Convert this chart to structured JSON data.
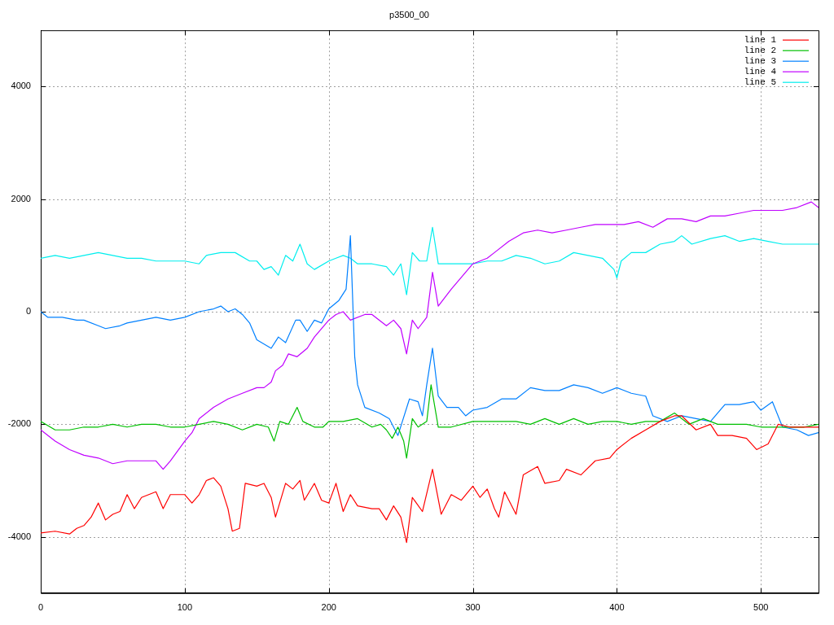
{
  "chart_data": {
    "type": "line",
    "title": "p3500_00",
    "xlim": [
      0,
      540
    ],
    "ylim": [
      -5000,
      5000
    ],
    "xticks": [
      0,
      100,
      200,
      300,
      400,
      500
    ],
    "yticks": [
      -4000,
      -2000,
      0,
      2000,
      4000
    ],
    "grid": true,
    "legend": "top right",
    "marker": "none",
    "line_style": "solid",
    "series": [
      {
        "name": "line 1",
        "color": "#ff0000",
        "x": [
          0,
          10,
          20,
          25,
          30,
          35,
          40,
          45,
          50,
          55,
          60,
          65,
          70,
          80,
          85,
          90,
          100,
          105,
          110,
          115,
          120,
          125,
          130,
          133,
          138,
          142,
          150,
          155,
          160,
          163,
          170,
          175,
          180,
          183,
          190,
          195,
          200,
          205,
          210,
          215,
          220,
          230,
          235,
          240,
          245,
          250,
          254,
          258,
          265,
          272,
          278,
          285,
          292,
          300,
          305,
          310,
          315,
          318,
          322,
          330,
          335,
          345,
          350,
          360,
          365,
          375,
          385,
          395,
          400,
          410,
          420,
          430,
          440,
          445,
          455,
          465,
          470,
          480,
          490,
          497,
          505,
          512,
          520,
          530,
          540
        ],
        "values": [
          -3930,
          -3900,
          -3950,
          -3850,
          -3800,
          -3650,
          -3400,
          -3700,
          -3600,
          -3550,
          -3250,
          -3500,
          -3300,
          -3200,
          -3500,
          -3250,
          -3250,
          -3400,
          -3250,
          -3000,
          -2950,
          -3100,
          -3500,
          -3900,
          -3850,
          -3050,
          -3100,
          -3050,
          -3300,
          -3650,
          -3050,
          -3150,
          -3000,
          -3350,
          -3050,
          -3350,
          -3400,
          -3050,
          -3550,
          -3250,
          -3450,
          -3500,
          -3500,
          -3700,
          -3450,
          -3650,
          -4100,
          -3300,
          -3550,
          -2800,
          -3600,
          -3250,
          -3350,
          -3100,
          -3300,
          -3150,
          -3500,
          -3650,
          -3200,
          -3600,
          -2900,
          -2750,
          -3050,
          -3000,
          -2800,
          -2900,
          -2650,
          -2600,
          -2450,
          -2250,
          -2100,
          -1950,
          -1850,
          -1850,
          -2100,
          -2000,
          -2200,
          -2200,
          -2250,
          -2450,
          -2350,
          -2000,
          -2050,
          -2050,
          -2050
        ]
      },
      {
        "name": "line 2",
        "color": "#00c000",
        "x": [
          0,
          10,
          20,
          30,
          40,
          50,
          60,
          70,
          80,
          90,
          100,
          110,
          120,
          130,
          140,
          150,
          158,
          162,
          166,
          172,
          178,
          182,
          190,
          196,
          200,
          210,
          220,
          230,
          236,
          240,
          244,
          248,
          252,
          254,
          258,
          262,
          268,
          271,
          276,
          285,
          300,
          310,
          320,
          330,
          340,
          350,
          360,
          370,
          380,
          390,
          400,
          410,
          420,
          430,
          440,
          450,
          460,
          470,
          480,
          490,
          500,
          510,
          520,
          530,
          540
        ],
        "values": [
          -1950,
          -2100,
          -2100,
          -2050,
          -2050,
          -2000,
          -2050,
          -2000,
          -2000,
          -2050,
          -2050,
          -2000,
          -1950,
          -2000,
          -2100,
          -2000,
          -2050,
          -2300,
          -1950,
          -2000,
          -1700,
          -1950,
          -2050,
          -2050,
          -1950,
          -1950,
          -1900,
          -2050,
          -2000,
          -2100,
          -2250,
          -2050,
          -2300,
          -2600,
          -1900,
          -2050,
          -1950,
          -1300,
          -2050,
          -2050,
          -1950,
          -1950,
          -1950,
          -1950,
          -2000,
          -1900,
          -2000,
          -1900,
          -2000,
          -1950,
          -1950,
          -2000,
          -1950,
          -1950,
          -1800,
          -2000,
          -1900,
          -2000,
          -2000,
          -2000,
          -2050,
          -2050,
          -2050,
          -2050,
          -2000
        ]
      },
      {
        "name": "line 3",
        "color": "#0080ff",
        "x": [
          0,
          5,
          15,
          25,
          30,
          40,
          45,
          55,
          60,
          70,
          80,
          90,
          100,
          110,
          120,
          125,
          130,
          135,
          140,
          145,
          150,
          160,
          165,
          170,
          177,
          180,
          185,
          190,
          195,
          200,
          207,
          212,
          215,
          218,
          220,
          225,
          235,
          242,
          248,
          256,
          262,
          265,
          268,
          272,
          276,
          282,
          290,
          295,
          300,
          310,
          320,
          330,
          340,
          350,
          360,
          370,
          380,
          390,
          400,
          410,
          420,
          425,
          435,
          445,
          455,
          465,
          475,
          485,
          495,
          500,
          508,
          515,
          525,
          533,
          540
        ],
        "values": [
          0,
          -100,
          -100,
          -150,
          -150,
          -250,
          -300,
          -250,
          -200,
          -150,
          -100,
          -150,
          -100,
          0,
          50,
          100,
          0,
          50,
          -50,
          -200,
          -500,
          -650,
          -450,
          -550,
          -150,
          -150,
          -350,
          -150,
          -200,
          50,
          200,
          400,
          1350,
          -800,
          -1300,
          -1700,
          -1800,
          -1900,
          -2200,
          -1550,
          -1600,
          -1850,
          -1300,
          -650,
          -1500,
          -1700,
          -1700,
          -1850,
          -1750,
          -1700,
          -1550,
          -1550,
          -1350,
          -1400,
          -1400,
          -1300,
          -1350,
          -1450,
          -1350,
          -1450,
          -1500,
          -1850,
          -1950,
          -1850,
          -1900,
          -1950,
          -1650,
          -1650,
          -1600,
          -1750,
          -1600,
          -2050,
          -2100,
          -2200,
          -2150
        ]
      },
      {
        "name": "line 4",
        "color": "#c000ff",
        "x": [
          0,
          10,
          20,
          30,
          40,
          50,
          60,
          70,
          80,
          85,
          90,
          100,
          105,
          110,
          120,
          130,
          140,
          150,
          155,
          160,
          163,
          168,
          172,
          178,
          185,
          190,
          200,
          205,
          210,
          215,
          225,
          230,
          240,
          245,
          250,
          254,
          258,
          262,
          268,
          272,
          276,
          285,
          300,
          310,
          315,
          325,
          335,
          345,
          355,
          365,
          375,
          385,
          395,
          405,
          415,
          425,
          435,
          445,
          455,
          465,
          475,
          485,
          495,
          505,
          515,
          525,
          535,
          540
        ],
        "values": [
          -2100,
          -2300,
          -2450,
          -2550,
          -2600,
          -2700,
          -2650,
          -2650,
          -2650,
          -2800,
          -2650,
          -2300,
          -2150,
          -1900,
          -1700,
          -1550,
          -1450,
          -1350,
          -1350,
          -1250,
          -1050,
          -950,
          -750,
          -800,
          -650,
          -450,
          -150,
          -50,
          0,
          -150,
          -50,
          -50,
          -250,
          -150,
          -300,
          -750,
          -150,
          -300,
          -100,
          700,
          100,
          400,
          850,
          950,
          1050,
          1250,
          1400,
          1450,
          1400,
          1450,
          1500,
          1550,
          1550,
          1550,
          1600,
          1500,
          1650,
          1650,
          1600,
          1700,
          1700,
          1750,
          1800,
          1800,
          1800,
          1850,
          1950,
          1850
        ]
      },
      {
        "name": "line 5",
        "color": "#00eeee",
        "x": [
          0,
          10,
          20,
          30,
          40,
          50,
          60,
          70,
          80,
          90,
          100,
          110,
          115,
          125,
          135,
          145,
          150,
          155,
          160,
          165,
          170,
          175,
          180,
          185,
          190,
          200,
          205,
          210,
          215,
          220,
          230,
          240,
          245,
          250,
          254,
          258,
          263,
          268,
          272,
          276,
          285,
          300,
          310,
          320,
          330,
          340,
          350,
          360,
          370,
          380,
          390,
          398,
          400,
          403,
          410,
          420,
          430,
          440,
          445,
          452,
          465,
          475,
          485,
          495,
          505,
          515,
          525,
          540
        ],
        "values": [
          950,
          1000,
          950,
          1000,
          1050,
          1000,
          950,
          950,
          900,
          900,
          900,
          850,
          1000,
          1050,
          1050,
          900,
          900,
          750,
          800,
          650,
          1000,
          900,
          1200,
          850,
          750,
          900,
          950,
          1000,
          950,
          850,
          850,
          800,
          650,
          850,
          300,
          1050,
          900,
          900,
          1500,
          850,
          850,
          850,
          900,
          900,
          1000,
          950,
          850,
          900,
          1050,
          1000,
          950,
          750,
          600,
          900,
          1050,
          1050,
          1200,
          1250,
          1350,
          1200,
          1300,
          1350,
          1250,
          1300,
          1250,
          1200,
          1200,
          1200
        ]
      }
    ]
  }
}
